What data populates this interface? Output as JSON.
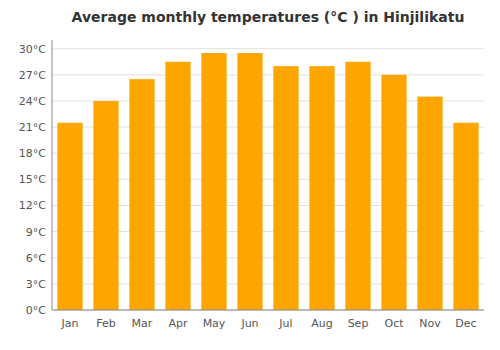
{
  "chart_data": {
    "type": "bar",
    "title": "Average monthly temperatures (°C ) in Hinjilikatu",
    "categories": [
      "Jan",
      "Feb",
      "Mar",
      "Apr",
      "May",
      "Jun",
      "Jul",
      "Aug",
      "Sep",
      "Oct",
      "Nov",
      "Dec"
    ],
    "values": [
      21.5,
      24.0,
      26.5,
      28.5,
      29.5,
      29.5,
      28.0,
      28.0,
      28.5,
      27.0,
      24.5,
      21.5
    ],
    "color": "#FFA500",
    "ylim": [
      0,
      31
    ],
    "yticks": [
      {
        "value": 0,
        "label": "0°C"
      },
      {
        "value": 3,
        "label": "3°C"
      },
      {
        "value": 6,
        "label": "6°C"
      },
      {
        "value": 9,
        "label": "9°C"
      },
      {
        "value": 12,
        "label": "12°C"
      },
      {
        "value": 15,
        "label": "15°C"
      },
      {
        "value": 18,
        "label": "18°C"
      },
      {
        "value": 21,
        "label": "21°C"
      },
      {
        "value": 24,
        "label": "24°C"
      },
      {
        "value": 27,
        "label": "27°C"
      },
      {
        "value": 30,
        "label": "30°C"
      }
    ],
    "grid": true
  }
}
